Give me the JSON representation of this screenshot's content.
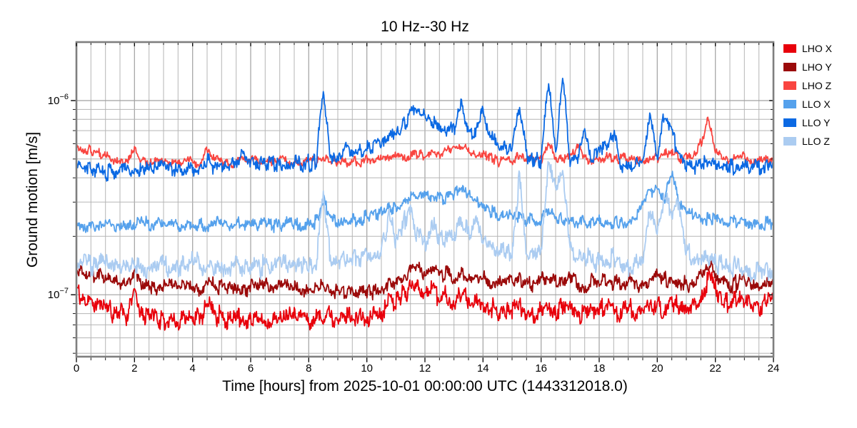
{
  "figure": {
    "title": "10 Hz--30 Hz",
    "xlabel": "Time [hours] from 2025-10-01 00:00:00 UTC (1443312018.0)",
    "ylabel": "Ground motion [m/s]"
  },
  "colors": {
    "background": "#ffffff",
    "grid_minor": "#b5b5b5",
    "grid_major": "#a0a0a0",
    "spine": "#7f7f7f",
    "tick": "#000000",
    "text": "#000000"
  },
  "chart_data": {
    "type": "line",
    "title": "10 Hz--30 Hz",
    "xlabel": "Time [hours] from 2025-10-01 00:00:00 UTC (1443312018.0)",
    "ylabel": "Ground motion [m/s]",
    "yscale": "log",
    "xlim": [
      0,
      24
    ],
    "ylim": [
      4.8e-08,
      2e-06
    ],
    "grid": true,
    "legend_position": "outside upper right",
    "x_ticks": [
      {
        "value": 0,
        "label": "0"
      },
      {
        "value": 2,
        "label": "2"
      },
      {
        "value": 4,
        "label": "4"
      },
      {
        "value": 6,
        "label": "6"
      },
      {
        "value": 8,
        "label": "8"
      },
      {
        "value": 10,
        "label": "10"
      },
      {
        "value": 12,
        "label": "12"
      },
      {
        "value": 14,
        "label": "14"
      },
      {
        "value": 16,
        "label": "16"
      },
      {
        "value": 18,
        "label": "18"
      },
      {
        "value": 20,
        "label": "20"
      },
      {
        "value": 22,
        "label": "22"
      },
      {
        "value": 24,
        "label": "24"
      }
    ],
    "x_minor_step": 0.5,
    "y_ticks": [
      {
        "value": 1e-06,
        "base": "10",
        "exp": "−6"
      },
      {
        "value": 1e-07,
        "base": "10",
        "exp": "−7"
      }
    ],
    "y_minor_gridlines": [
      5e-08,
      6e-08,
      7e-08,
      8e-08,
      9e-08,
      2e-07,
      3e-07,
      4e-07,
      5e-07,
      6e-07,
      7e-07,
      8e-07,
      9e-07
    ],
    "x_start": 0,
    "sample_step_hours": 0.25,
    "value_scale": 1e-07,
    "series": [
      {
        "name": "LHO X",
        "color": "#e8000b",
        "values": [
          1.05,
          1.0,
          0.93,
          0.88,
          0.85,
          0.81,
          0.79,
          0.8,
          0.98,
          0.82,
          0.78,
          0.77,
          0.76,
          0.75,
          0.76,
          0.77,
          0.75,
          0.74,
          0.88,
          0.78,
          0.75,
          0.74,
          0.76,
          0.75,
          0.74,
          0.75,
          0.76,
          0.74,
          0.75,
          0.76,
          0.78,
          0.75,
          0.74,
          0.76,
          0.8,
          0.78,
          0.76,
          0.75,
          0.78,
          0.76,
          0.75,
          0.78,
          0.82,
          0.9,
          0.95,
          1.0,
          1.1,
          1.15,
          1.05,
          1.1,
          0.95,
          1.0,
          0.92,
          1.05,
          0.95,
          0.9,
          0.92,
          0.85,
          0.8,
          0.85,
          0.82,
          0.9,
          0.85,
          0.82,
          0.85,
          0.88,
          0.82,
          0.85,
          0.88,
          0.82,
          0.8,
          0.85,
          0.82,
          0.85,
          0.8,
          0.82,
          0.85,
          0.8,
          0.82,
          0.85,
          0.88,
          0.85,
          0.9,
          0.85,
          0.82,
          0.85,
          1.0,
          1.2,
          1.1,
          0.95,
          0.9,
          0.92,
          0.95,
          0.9,
          0.88,
          0.92,
          0.95
        ]
      },
      {
        "name": "LHO Y",
        "color": "#9b0a0a",
        "values": [
          1.35,
          1.3,
          1.24,
          1.28,
          1.2,
          1.15,
          1.12,
          1.15,
          1.28,
          1.14,
          1.1,
          1.08,
          1.1,
          1.08,
          1.1,
          1.12,
          1.1,
          1.08,
          1.16,
          1.1,
          1.08,
          1.1,
          1.12,
          1.1,
          1.08,
          1.1,
          1.11,
          1.08,
          1.1,
          1.1,
          1.12,
          1.08,
          1.06,
          1.08,
          1.12,
          1.08,
          1.05,
          1.03,
          1.06,
          1.05,
          1.03,
          1.05,
          1.08,
          1.12,
          1.18,
          1.26,
          1.35,
          1.4,
          1.3,
          1.35,
          1.24,
          1.3,
          1.2,
          1.3,
          1.22,
          1.18,
          1.25,
          1.15,
          1.12,
          1.18,
          1.15,
          1.2,
          1.15,
          1.12,
          1.18,
          1.22,
          1.15,
          1.2,
          1.25,
          1.15,
          1.12,
          1.18,
          1.15,
          1.2,
          1.12,
          1.15,
          1.18,
          1.12,
          1.15,
          1.2,
          1.3,
          1.18,
          1.25,
          1.15,
          1.12,
          1.15,
          1.25,
          1.45,
          1.3,
          1.18,
          1.12,
          1.15,
          1.2,
          1.12,
          1.1,
          1.15,
          1.18
        ]
      },
      {
        "name": "LHO Z",
        "color": "#f94540",
        "values": [
          5.8,
          5.5,
          5.6,
          5.3,
          5.2,
          5.0,
          4.9,
          5.0,
          5.5,
          4.9,
          4.8,
          4.85,
          4.8,
          4.75,
          4.8,
          5.0,
          4.8,
          4.75,
          5.5,
          4.9,
          4.8,
          4.75,
          4.8,
          5.2,
          5.0,
          4.9,
          4.85,
          4.8,
          4.85,
          4.8,
          4.75,
          4.8,
          4.85,
          4.8,
          4.9,
          4.85,
          4.8,
          4.85,
          4.9,
          4.85,
          4.9,
          4.95,
          5.0,
          5.1,
          5.05,
          5.1,
          5.2,
          5.15,
          5.3,
          5.5,
          5.4,
          5.6,
          5.5,
          5.7,
          5.5,
          5.3,
          5.2,
          5.0,
          4.9,
          4.95,
          4.9,
          5.1,
          4.95,
          4.9,
          5.0,
          6.0,
          5.0,
          5.1,
          5.0,
          6.0,
          5.0,
          4.9,
          5.0,
          5.1,
          4.95,
          5.0,
          5.05,
          4.95,
          5.0,
          5.1,
          5.0,
          5.2,
          5.6,
          5.1,
          5.0,
          5.1,
          6.0,
          8.2,
          5.5,
          5.1,
          4.9,
          5.0,
          5.1,
          4.9,
          4.85,
          4.9,
          5.0
        ]
      },
      {
        "name": "LLO X",
        "color": "#55a1ec",
        "values": [
          2.35,
          2.3,
          2.25,
          2.3,
          2.28,
          2.32,
          2.3,
          2.25,
          2.3,
          2.35,
          2.3,
          2.28,
          2.32,
          2.3,
          2.25,
          2.3,
          2.35,
          2.3,
          2.28,
          2.32,
          2.3,
          2.28,
          2.3,
          2.32,
          2.28,
          2.3,
          2.32,
          2.28,
          2.3,
          2.35,
          2.3,
          2.28,
          2.3,
          2.35,
          3.1,
          2.5,
          2.4,
          2.35,
          2.4,
          2.45,
          2.5,
          2.55,
          2.6,
          2.7,
          2.8,
          3.0,
          3.2,
          3.3,
          3.3,
          3.2,
          3.1,
          3.2,
          3.3,
          3.5,
          3.2,
          3.1,
          2.9,
          2.7,
          2.6,
          2.55,
          2.5,
          2.45,
          2.4,
          2.42,
          2.5,
          2.8,
          2.5,
          2.45,
          2.4,
          2.38,
          2.35,
          2.4,
          2.4,
          2.35,
          2.3,
          2.35,
          2.4,
          2.45,
          3.0,
          3.5,
          3.4,
          3.2,
          4.2,
          3.0,
          2.6,
          2.55,
          2.5,
          2.45,
          2.4,
          2.38,
          2.35,
          2.4,
          2.38,
          2.35,
          2.3,
          2.35,
          2.35
        ]
      },
      {
        "name": "LLO Y",
        "color": "#0b69e3",
        "values": [
          4.4,
          4.6,
          4.3,
          4.35,
          4.2,
          4.3,
          4.4,
          4.35,
          4.4,
          4.5,
          4.45,
          4.4,
          4.5,
          4.45,
          4.4,
          4.35,
          4.5,
          4.45,
          5.0,
          4.5,
          4.55,
          4.6,
          4.7,
          5.3,
          4.8,
          4.7,
          4.75,
          4.7,
          4.75,
          4.7,
          4.75,
          4.7,
          4.75,
          4.8,
          11.0,
          5.2,
          5.3,
          5.5,
          5.6,
          5.5,
          5.7,
          5.8,
          6.0,
          6.3,
          6.8,
          7.5,
          8.5,
          8.8,
          8.3,
          7.8,
          7.2,
          7.0,
          7.3,
          9.5,
          7.0,
          6.8,
          9.0,
          6.5,
          6.0,
          5.8,
          5.5,
          9.5,
          5.2,
          5.0,
          4.9,
          12.3,
          5.5,
          13.0,
          5.0,
          4.8,
          6.8,
          4.7,
          5.8,
          5.5,
          6.8,
          4.6,
          4.5,
          4.6,
          4.7,
          8.6,
          5.0,
          8.8,
          6.5,
          5.5,
          4.8,
          4.6,
          4.7,
          4.8,
          4.6,
          4.5,
          4.55,
          4.5,
          4.6,
          4.5,
          4.45,
          4.5,
          4.55
        ]
      },
      {
        "name": "LLO Z",
        "color": "#abccf1",
        "values": [
          1.5,
          1.45,
          1.4,
          1.45,
          1.4,
          1.42,
          1.45,
          1.42,
          1.4,
          1.42,
          1.38,
          1.4,
          1.42,
          1.4,
          1.38,
          1.42,
          1.45,
          1.42,
          1.4,
          1.38,
          1.4,
          1.42,
          1.45,
          1.42,
          1.4,
          1.38,
          1.42,
          1.4,
          1.42,
          1.45,
          1.42,
          1.4,
          1.4,
          1.42,
          3.2,
          1.5,
          1.45,
          1.5,
          1.55,
          1.5,
          1.55,
          1.6,
          1.7,
          2.6,
          1.9,
          2.2,
          3.0,
          2.0,
          1.9,
          2.4,
          1.9,
          2.1,
          1.8,
          2.5,
          2.0,
          2.3,
          1.9,
          1.8,
          1.7,
          1.65,
          1.6,
          3.9,
          1.7,
          1.6,
          1.65,
          5.0,
          3.5,
          4.5,
          1.8,
          1.6,
          1.55,
          1.5,
          1.45,
          1.5,
          1.6,
          1.45,
          1.4,
          1.45,
          1.5,
          2.8,
          2.2,
          3.2,
          2.5,
          3.0,
          1.7,
          1.5,
          1.45,
          1.5,
          1.45,
          1.4,
          1.35,
          1.4,
          1.35,
          1.3,
          1.35,
          1.3,
          1.35
        ]
      }
    ]
  }
}
